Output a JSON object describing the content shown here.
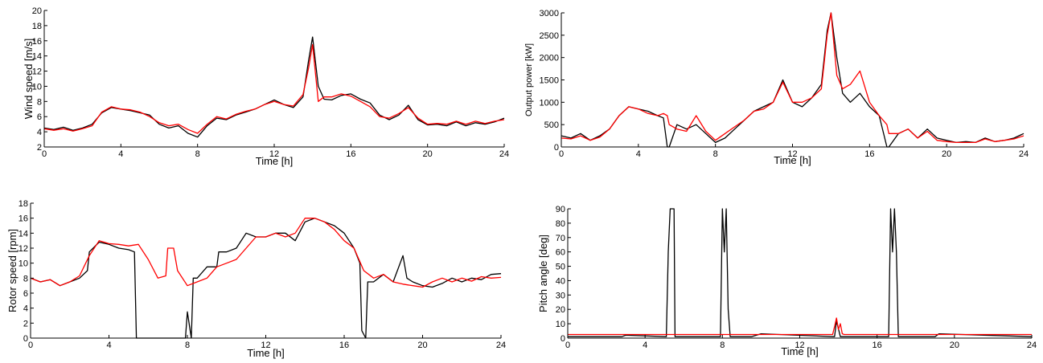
{
  "chart_data": [
    {
      "type": "line",
      "panel": "top-left",
      "title": "",
      "xlabel": "Time [h]",
      "ylabel": "Wind speed [m/s]",
      "xlim": [
        0,
        24
      ],
      "ylim": [
        2,
        20
      ],
      "xticks": [
        0,
        4,
        8,
        12,
        16,
        20,
        24
      ],
      "yticks": [
        2,
        4,
        6,
        8,
        10,
        12,
        14,
        16,
        18,
        20
      ],
      "grid": false,
      "series": [
        {
          "color": "#000000",
          "x": [
            0,
            0.5,
            1,
            1.5,
            2,
            2.5,
            3,
            3.5,
            4,
            4.5,
            5,
            5.5,
            6,
            6.5,
            7,
            7.5,
            8,
            8.5,
            9,
            9.5,
            10,
            10.5,
            11,
            11.5,
            12,
            12.5,
            13,
            13.5,
            13.8,
            14,
            14.3,
            14.6,
            15,
            15.5,
            16,
            16.5,
            17,
            17.5,
            18,
            18.5,
            19,
            19.5,
            20,
            20.5,
            21,
            21.5,
            22,
            22.5,
            23,
            23.5,
            24
          ],
          "y": [
            4.5,
            4.3,
            4.6,
            4.2,
            4.5,
            5.0,
            6.5,
            7.2,
            7.0,
            6.8,
            6.5,
            6.2,
            5.0,
            4.5,
            4.8,
            3.8,
            3.3,
            4.8,
            5.8,
            5.6,
            6.2,
            6.6,
            7.0,
            7.6,
            8.2,
            7.6,
            7.2,
            8.6,
            13.5,
            16.5,
            10.0,
            8.3,
            8.2,
            8.8,
            9.0,
            8.3,
            7.8,
            6.2,
            5.6,
            6.2,
            7.5,
            5.6,
            4.9,
            5.0,
            4.8,
            5.3,
            4.8,
            5.2,
            5.0,
            5.3,
            5.8
          ]
        },
        {
          "color": "#ff0000",
          "x": [
            0,
            0.5,
            1,
            1.5,
            2,
            2.5,
            3,
            3.5,
            4,
            4.5,
            5,
            5.5,
            6,
            6.5,
            7,
            7.5,
            8,
            8.5,
            9,
            9.5,
            10,
            10.5,
            11,
            11.5,
            12,
            12.5,
            13,
            13.5,
            13.8,
            14,
            14.3,
            14.6,
            15,
            15.5,
            16,
            16.5,
            17,
            17.5,
            18,
            18.5,
            19,
            19.5,
            20,
            20.5,
            21,
            21.5,
            22,
            22.5,
            23,
            23.5,
            24
          ],
          "y": [
            4.4,
            4.2,
            4.4,
            4.1,
            4.4,
            4.8,
            6.6,
            7.3,
            7.0,
            6.9,
            6.6,
            6.0,
            5.2,
            4.8,
            5.0,
            4.3,
            3.8,
            5.0,
            6.0,
            5.7,
            6.3,
            6.7,
            7.0,
            7.6,
            8.0,
            7.6,
            7.4,
            8.9,
            12.5,
            15.5,
            8.0,
            8.6,
            8.6,
            9.0,
            8.7,
            8.0,
            7.3,
            6.0,
            5.8,
            6.4,
            7.2,
            5.8,
            5.0,
            5.1,
            5.0,
            5.4,
            5.0,
            5.4,
            5.1,
            5.4,
            5.6
          ]
        }
      ]
    },
    {
      "type": "line",
      "panel": "top-right",
      "title": "",
      "xlabel": "Time [h]",
      "ylabel": "Output power [kW]",
      "xlim": [
        0,
        24
      ],
      "ylim": [
        0,
        3000
      ],
      "xticks": [
        0,
        4,
        8,
        12,
        16,
        20,
        24
      ],
      "yticks": [
        0,
        500,
        1000,
        1500,
        2000,
        2500,
        3000
      ],
      "grid": false,
      "series": [
        {
          "color": "#000000",
          "x": [
            0,
            0.5,
            1,
            1.5,
            2,
            2.5,
            3,
            3.5,
            4,
            4.5,
            5,
            5.3,
            5.5,
            5.6,
            6,
            6.5,
            7,
            7.5,
            8,
            8.5,
            9,
            9.5,
            10,
            10.5,
            11,
            11.5,
            12,
            12.5,
            13,
            13.5,
            13.8,
            14,
            14.3,
            14.6,
            15,
            15.5,
            16,
            16.5,
            16.9,
            17,
            17.5,
            18,
            18.5,
            19,
            19.5,
            20,
            20.5,
            21,
            21.5,
            22,
            22.5,
            23,
            23.5,
            24
          ],
          "y": [
            250,
            200,
            300,
            150,
            250,
            400,
            700,
            900,
            850,
            800,
            700,
            650,
            0,
            0,
            500,
            400,
            500,
            300,
            100,
            200,
            400,
            600,
            800,
            900,
            1000,
            1500,
            1000,
            900,
            1100,
            1400,
            2600,
            3000,
            2000,
            1200,
            1000,
            1200,
            900,
            700,
            0,
            0,
            300,
            400,
            200,
            400,
            200,
            150,
            100,
            120,
            100,
            200,
            120,
            150,
            200,
            300
          ]
        },
        {
          "color": "#ff0000",
          "x": [
            0,
            0.5,
            1,
            1.5,
            2,
            2.5,
            3,
            3.5,
            4,
            4.5,
            5,
            5.3,
            5.5,
            5.6,
            6,
            6.5,
            7,
            7.5,
            8,
            8.5,
            9,
            9.5,
            10,
            10.5,
            11,
            11.5,
            12,
            12.5,
            13,
            13.5,
            13.8,
            14,
            14.3,
            14.6,
            15,
            15.5,
            16,
            16.5,
            16.9,
            17,
            17.5,
            18,
            18.5,
            19,
            19.5,
            20,
            20.5,
            21,
            21.5,
            22,
            22.5,
            23,
            23.5,
            24
          ],
          "y": [
            200,
            180,
            250,
            150,
            220,
            400,
            700,
            900,
            850,
            750,
            700,
            750,
            700,
            500,
            400,
            350,
            700,
            350,
            150,
            300,
            450,
            600,
            800,
            850,
            1000,
            1450,
            1000,
            1000,
            1100,
            1300,
            2500,
            3000,
            1600,
            1300,
            1400,
            1700,
            1000,
            700,
            500,
            300,
            300,
            400,
            200,
            350,
            150,
            120,
            100,
            100,
            100,
            180,
            120,
            150,
            180,
            250
          ]
        }
      ]
    },
    {
      "type": "line",
      "panel": "bottom-left",
      "title": "",
      "xlabel": "Time [h]",
      "ylabel": "Rotor speed [rpm]",
      "xlim": [
        0,
        24
      ],
      "ylim": [
        0,
        18
      ],
      "xticks": [
        0,
        4,
        8,
        12,
        16,
        20,
        24
      ],
      "yticks": [
        0,
        2,
        4,
        6,
        8,
        10,
        12,
        14,
        16,
        18
      ],
      "grid": false,
      "series": [
        {
          "color": "#000000",
          "x": [
            0,
            0.5,
            1,
            1.5,
            2,
            2.5,
            2.9,
            3,
            3.5,
            4,
            4.5,
            5,
            5.3,
            5.4,
            6,
            7,
            7.9,
            8,
            8.2,
            8.3,
            8.5,
            9,
            9.5,
            9.6,
            10,
            10.5,
            11,
            11.5,
            12,
            12.5,
            13,
            13.5,
            14,
            14.5,
            15,
            15.5,
            16,
            16.5,
            16.8,
            16.9,
            17.1,
            17.2,
            17.5,
            18,
            18.5,
            19,
            19.2,
            19.5,
            20,
            20.5,
            21,
            21.5,
            22,
            22.5,
            23,
            23.5,
            24
          ],
          "y": [
            8,
            7.5,
            7.8,
            7,
            7.5,
            8,
            9,
            11.5,
            12.8,
            12.5,
            12,
            11.8,
            11.5,
            0,
            0,
            0,
            0,
            3.5,
            0,
            8,
            8,
            9.5,
            9.5,
            11.5,
            11.5,
            12,
            14,
            13.5,
            13.5,
            14,
            14,
            13,
            15.5,
            16,
            15.5,
            15,
            14,
            12,
            10,
            1,
            0,
            7.5,
            7.5,
            8.5,
            7.5,
            11,
            8,
            7.5,
            7,
            6.8,
            7.3,
            8,
            7.5,
            8,
            7.8,
            8.5,
            8.6
          ]
        },
        {
          "color": "#ff0000",
          "x": [
            0,
            0.5,
            1,
            1.5,
            2,
            2.5,
            3,
            3.5,
            4,
            4.5,
            5,
            5.5,
            6,
            6.5,
            6.9,
            7,
            7.3,
            7.5,
            8,
            8.5,
            9,
            9.5,
            10,
            10.5,
            11,
            11.5,
            12,
            12.5,
            13,
            13.5,
            14,
            14.5,
            15,
            15.5,
            16,
            16.5,
            17,
            17.5,
            18,
            18.5,
            19,
            19.5,
            20,
            20.5,
            21,
            21.5,
            22,
            22.5,
            23,
            23.5,
            24
          ],
          "y": [
            8,
            7.5,
            7.8,
            7,
            7.5,
            8.3,
            11,
            13,
            12.6,
            12.5,
            12.3,
            12.5,
            10.5,
            8,
            8.3,
            12,
            12,
            9,
            7,
            7.5,
            8,
            9.5,
            10,
            10.5,
            12,
            13.5,
            13.5,
            14,
            13.5,
            14,
            16,
            16,
            15.5,
            14.5,
            13,
            12,
            9,
            8,
            8.5,
            7.5,
            7.2,
            7,
            6.8,
            7.5,
            8,
            7.5,
            8,
            7.6,
            8.2,
            8,
            8.1
          ]
        }
      ]
    },
    {
      "type": "line",
      "panel": "bottom-right",
      "title": "",
      "xlabel": "Time [h]",
      "ylabel": "Pitch angle [deg]",
      "xlim": [
        0,
        24
      ],
      "ylim": [
        0,
        90
      ],
      "xticks": [
        0,
        4,
        8,
        12,
        16,
        20,
        24
      ],
      "yticks": [
        0,
        10,
        20,
        30,
        40,
        50,
        60,
        70,
        80,
        90
      ],
      "grid": false,
      "series": [
        {
          "color": "#000000",
          "x": [
            0,
            2.8,
            3,
            5.1,
            5.2,
            5.3,
            5.5,
            5.55,
            7.9,
            8.0,
            8.1,
            8.2,
            8.3,
            8.4,
            9.5,
            10,
            13.8,
            13.9,
            14.1,
            16.6,
            16.7,
            16.8,
            16.9,
            17.0,
            17.1,
            19,
            19.2,
            24
          ],
          "y": [
            1,
            1,
            2,
            1,
            60,
            90,
            90,
            1,
            1,
            90,
            60,
            90,
            20,
            1,
            1,
            3,
            1,
            12,
            1,
            1,
            90,
            60,
            90,
            60,
            1,
            1,
            3,
            1
          ]
        },
        {
          "color": "#ff0000",
          "x": [
            0,
            13.7,
            13.8,
            13.9,
            14.0,
            14.1,
            14.2,
            14.3,
            24
          ],
          "y": [
            2.5,
            2.5,
            8,
            14,
            6,
            10,
            3,
            2.5,
            2.5
          ]
        }
      ]
    }
  ]
}
